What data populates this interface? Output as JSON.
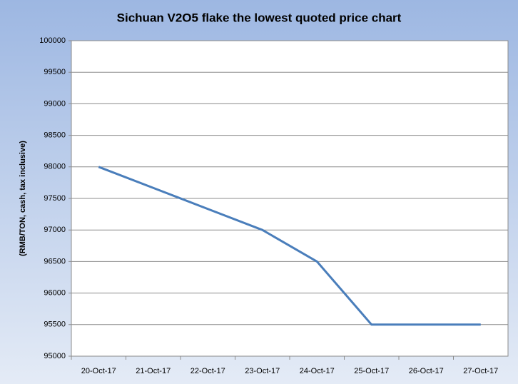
{
  "chart_data": {
    "type": "line",
    "title": "Sichuan V2O5 flake the lowest quoted price chart",
    "y_label": "(RMB/TON, cash, tax inclusive)",
    "categories": [
      "20-Oct-17",
      "21-Oct-17",
      "22-Oct-17",
      "23-Oct-17",
      "24-Oct-17",
      "25-Oct-17",
      "26-Oct-17",
      "27-Oct-17"
    ],
    "values": [
      98000,
      97667,
      97333,
      97000,
      96500,
      95500,
      95500,
      95500
    ],
    "color": "#4a7ebb",
    "ylim": [
      95000,
      100000
    ],
    "yticks": [
      95000,
      95500,
      96000,
      96500,
      97000,
      97500,
      98000,
      98500,
      99000,
      99500,
      100000
    ],
    "grid": true
  }
}
